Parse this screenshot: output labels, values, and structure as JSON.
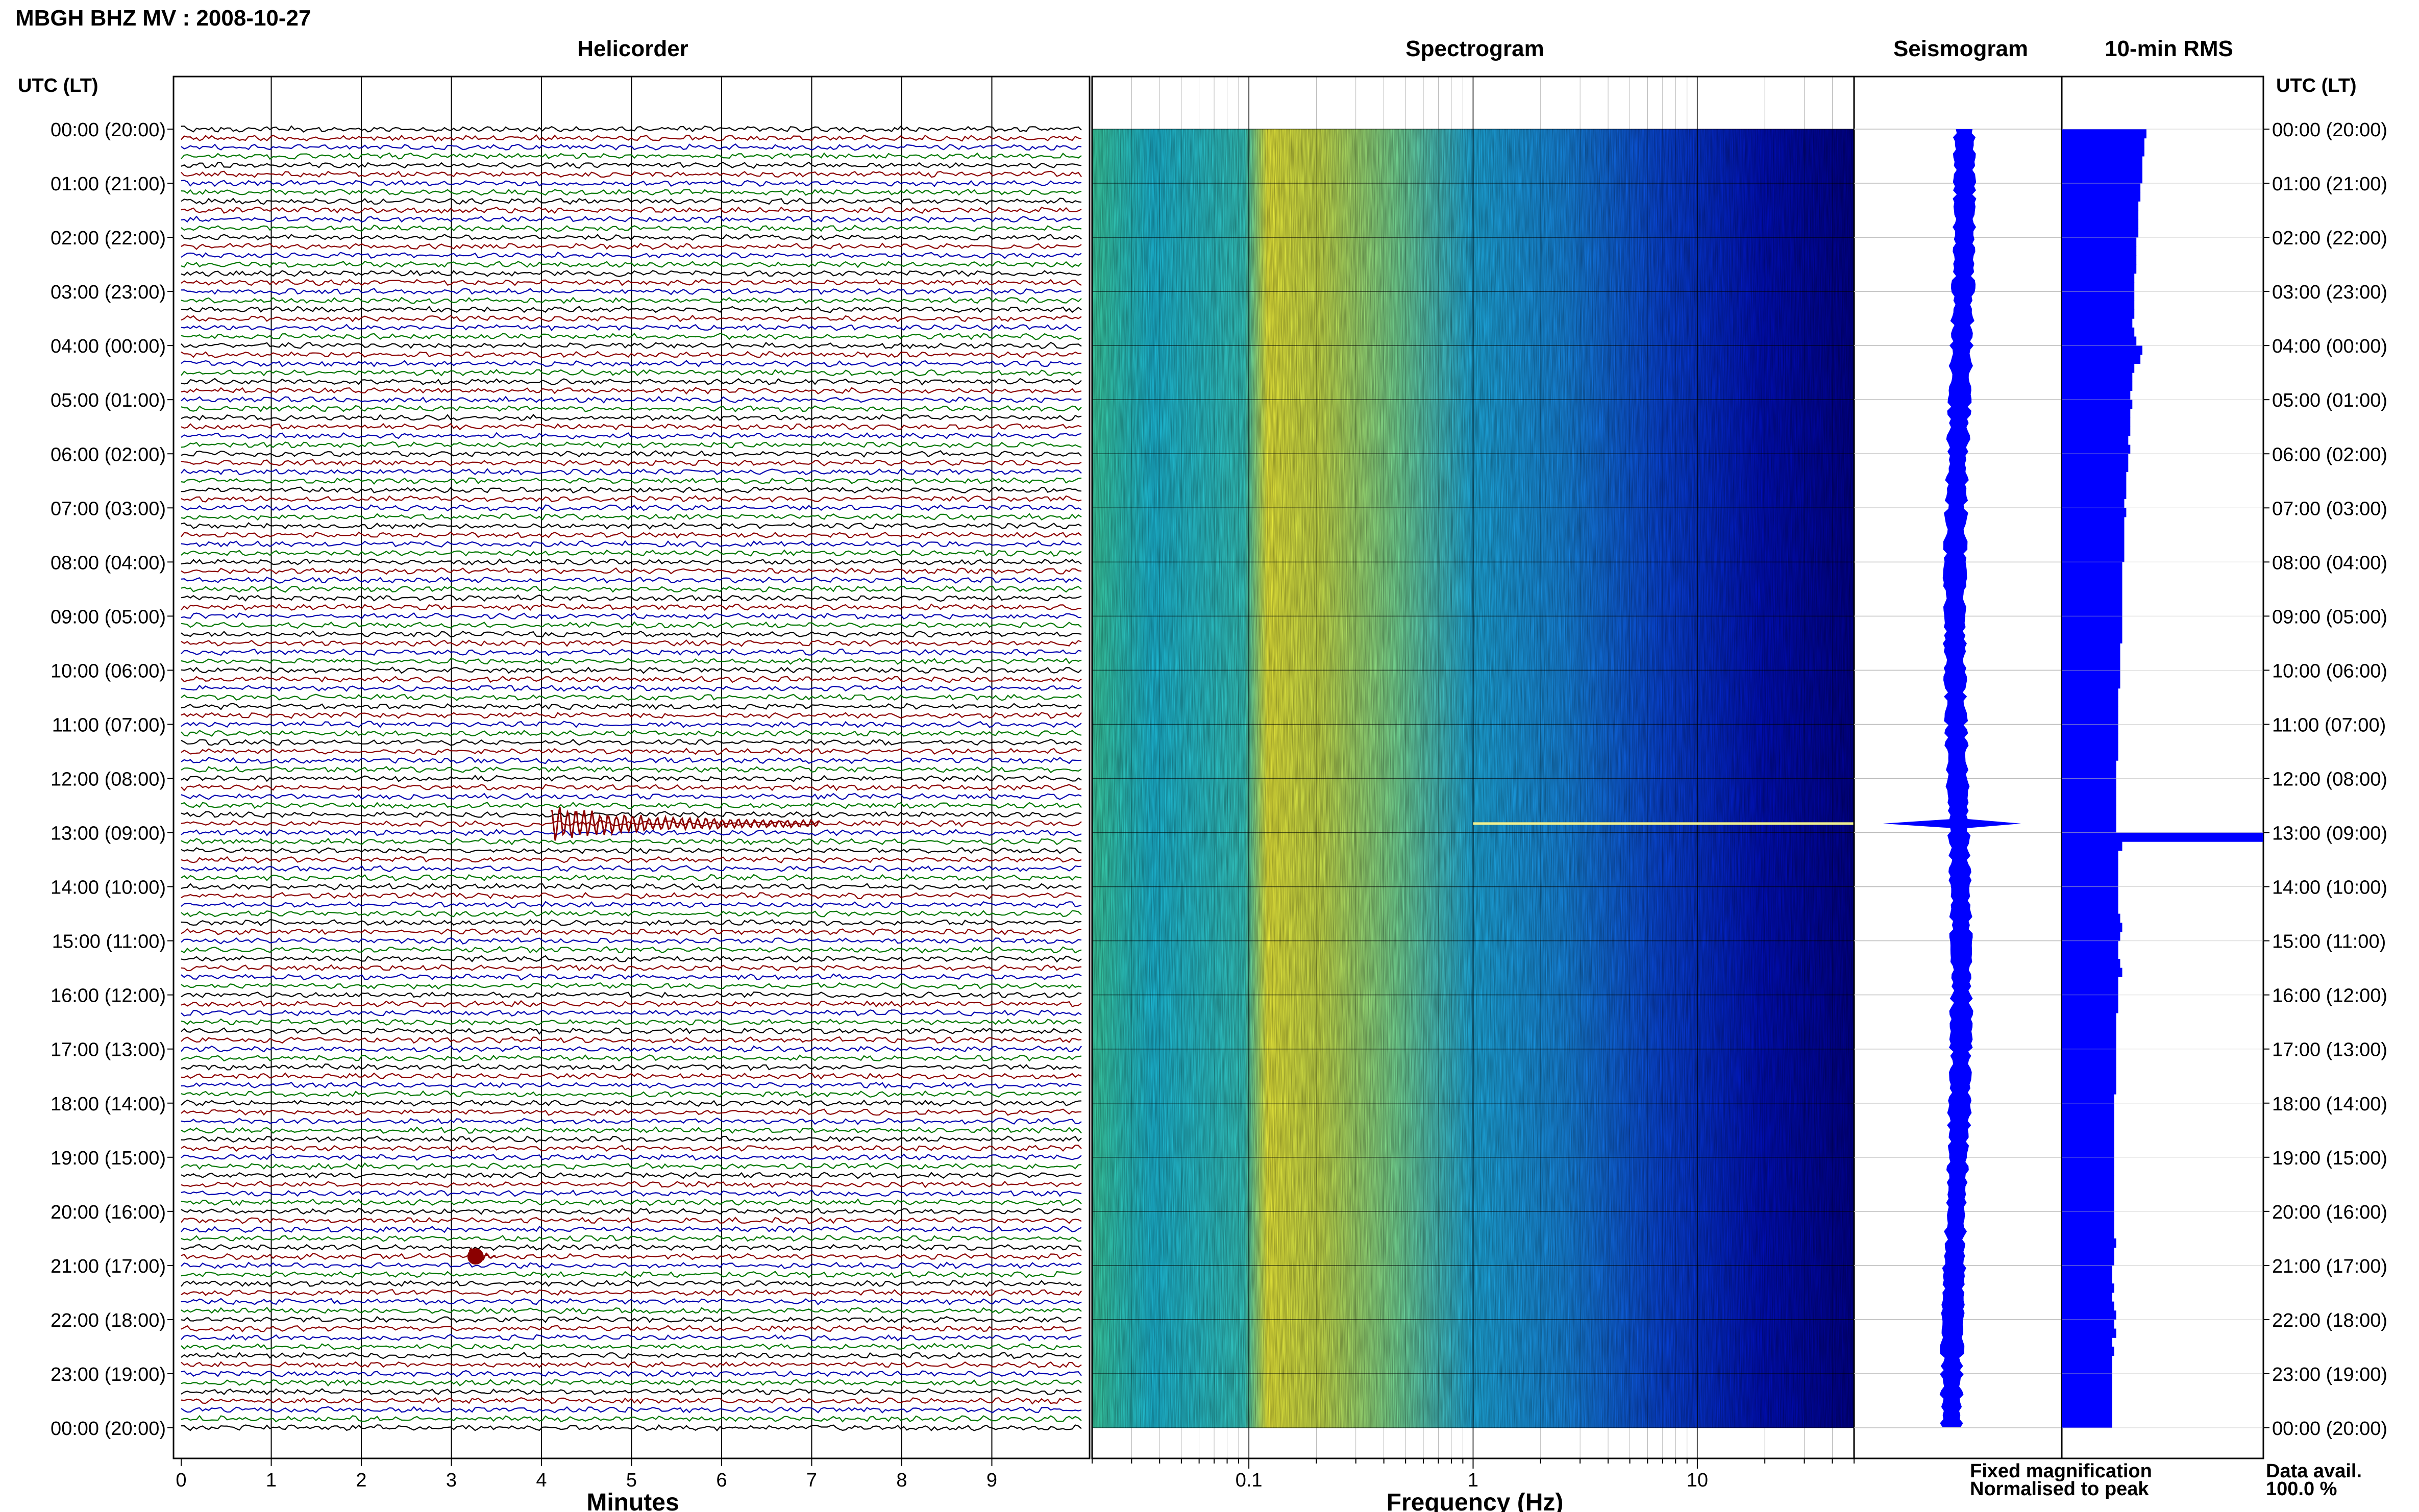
{
  "header": {
    "title": "MBGH BHZ MV : 2008-10-27",
    "utc_label_left": "UTC (LT)",
    "utc_label_right": "UTC (LT)"
  },
  "panels": {
    "helicorder": "Helicorder",
    "spectrogram": "Spectrogram",
    "seismogram": "Seismogram",
    "rms": "10-min RMS"
  },
  "footer": {
    "fixed_magnification": "Fixed magnification",
    "normalised_to_peak": "Normalised to peak",
    "data_avail_label": "Data avail.",
    "data_avail_value": "100.0 %"
  },
  "colors": {
    "fixed_magnification": "#0000ff",
    "normalised_to_peak": "#ff0000",
    "trace_colors": [
      "#000000",
      "#8b0000",
      "#0000b0",
      "#007700"
    ],
    "rms_bar": "#0000ff",
    "seismogram": "#0000ff"
  },
  "chart_data": [
    {
      "type": "line",
      "panel": "helicorder",
      "xlabel": "Minutes",
      "xlim": [
        0,
        10
      ],
      "xticks": [
        "0",
        "1",
        "2",
        "3",
        "4",
        "5",
        "6",
        "7",
        "8",
        "9"
      ],
      "row_labels": [
        "00:00 (20:00)",
        "01:00 (21:00)",
        "02:00 (22:00)",
        "03:00 (23:00)",
        "04:00 (00:00)",
        "05:00 (01:00)",
        "06:00 (02:00)",
        "07:00 (03:00)",
        "08:00 (04:00)",
        "09:00 (05:00)",
        "10:00 (06:00)",
        "11:00 (07:00)",
        "12:00 (08:00)",
        "13:00 (09:00)",
        "14:00 (10:00)",
        "15:00 (11:00)",
        "16:00 (12:00)",
        "17:00 (13:00)",
        "18:00 (14:00)",
        "19:00 (15:00)",
        "20:00 (16:00)",
        "21:00 (17:00)",
        "22:00 (18:00)",
        "23:00 (19:00)",
        "00:00 (20:00)"
      ],
      "traces_per_hour": 6,
      "events": [
        {
          "time": "12:50",
          "minute": 4.1,
          "amplitude": "large",
          "duration_min": 3
        },
        {
          "time": "20:50",
          "minute": 3.2,
          "amplitude": "small",
          "duration_min": 0.3
        }
      ]
    },
    {
      "type": "heatmap",
      "panel": "spectrogram",
      "xlabel": "Frequency (Hz)",
      "xscale": "log",
      "xlim": [
        0.02,
        50
      ],
      "xtick_labels": [
        "0.1",
        "1",
        "10"
      ]
    },
    {
      "type": "line",
      "panel": "seismogram",
      "events": [
        {
          "time": "12:50",
          "amplitude": "large"
        }
      ]
    },
    {
      "type": "bar",
      "panel": "rms",
      "interval": "10-min",
      "ylabel_time": "UTC (LT)",
      "values_relative": [
        0.42,
        0.41,
        0.41,
        0.4,
        0.4,
        0.4,
        0.39,
        0.39,
        0.38,
        0.38,
        0.38,
        0.38,
        0.37,
        0.37,
        0.37,
        0.37,
        0.36,
        0.36,
        0.36,
        0.36,
        0.36,
        0.35,
        0.36,
        0.37,
        0.4,
        0.39,
        0.36,
        0.35,
        0.35,
        0.34,
        0.35,
        0.34,
        0.34,
        0.34,
        0.33,
        0.34,
        0.33,
        0.33,
        0.32,
        0.32,
        0.32,
        0.31,
        0.32,
        0.31,
        0.31,
        0.31,
        0.31,
        0.31,
        0.3,
        0.3,
        0.3,
        0.3,
        0.3,
        0.3,
        0.3,
        0.3,
        0.3,
        0.29,
        0.29,
        0.29,
        0.29,
        0.29,
        0.28,
        0.28,
        0.28,
        0.28,
        0.28,
        0.28,
        0.28,
        0.28,
        0.27,
        0.27,
        0.27,
        0.27,
        0.27,
        0.27,
        0.27,
        0.27,
        1.0,
        0.3,
        0.28,
        0.28,
        0.28,
        0.28,
        0.28,
        0.28,
        0.28,
        0.29,
        0.3,
        0.29,
        0.28,
        0.28,
        0.29,
        0.3,
        0.28,
        0.28,
        0.28,
        0.28,
        0.27,
        0.27,
        0.27,
        0.27,
        0.27,
        0.27,
        0.27,
        0.27,
        0.27,
        0.26,
        0.26,
        0.26,
        0.26,
        0.26,
        0.26,
        0.26,
        0.26,
        0.26,
        0.26,
        0.26,
        0.26,
        0.26,
        0.26,
        0.26,
        0.26,
        0.27,
        0.26,
        0.26,
        0.25,
        0.25,
        0.26,
        0.25,
        0.26,
        0.27,
        0.26,
        0.27,
        0.25,
        0.26,
        0.25,
        0.25,
        0.25,
        0.25,
        0.25,
        0.25,
        0.25,
        0.25
      ]
    }
  ]
}
